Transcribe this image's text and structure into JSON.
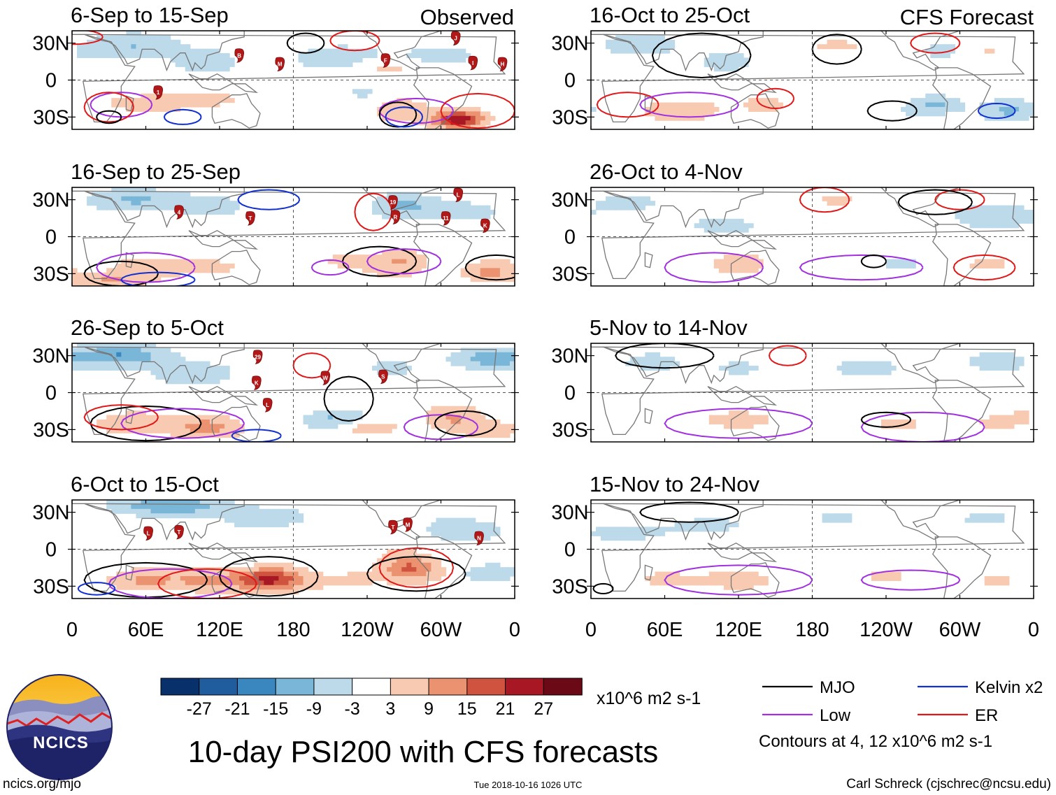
{
  "chart_data": {
    "type": "heatmap",
    "title": "10-day PSI200 with CFS forecasts",
    "units": "x10^6 m2 s-1",
    "columns": [
      "Observed",
      "CFS Forecast"
    ],
    "panels": [
      {
        "period": "6-Sep to 15-Sep",
        "column": "Observed",
        "storms": [
          {
            "id": "B",
            "lon": 136,
            "lat": 20
          },
          {
            "id": "M",
            "lon": 169,
            "lat": 13
          },
          {
            "id": "F",
            "lon": -105,
            "lat": 16
          },
          {
            "id": "J",
            "lon": -48,
            "lat": 34
          },
          {
            "id": "I",
            "lon": -34,
            "lat": 14
          },
          {
            "id": "H",
            "lon": -10,
            "lat": 13
          },
          {
            "id": "1",
            "lon": 70,
            "lat": -10
          }
        ]
      },
      {
        "period": "16-Oct to 25-Oct",
        "column": "CFS Forecast",
        "storms": []
      },
      {
        "period": "16-Sep to 25-Sep",
        "column": "Observed",
        "storms": [
          {
            "id": "4",
            "lon": 87,
            "lat": 20
          },
          {
            "id": "T",
            "lon": 145,
            "lat": 15
          },
          {
            "id": "19",
            "lon": -99,
            "lat": 28
          },
          {
            "id": "R",
            "lon": -97,
            "lat": 16
          },
          {
            "id": "L",
            "lon": -46,
            "lat": 34
          },
          {
            "id": "11",
            "lon": -56,
            "lat": 15
          },
          {
            "id": "K",
            "lon": -24,
            "lat": 9
          }
        ]
      },
      {
        "period": "26-Oct to 4-Nov",
        "column": "CFS Forecast",
        "storms": []
      },
      {
        "period": "26-Sep to 5-Oct",
        "column": "Observed",
        "storms": [
          {
            "id": "29",
            "lon": 151,
            "lat": 29
          },
          {
            "id": "K",
            "lon": 150,
            "lat": 8
          },
          {
            "id": "L",
            "lon": 159,
            "lat": -10
          },
          {
            "id": "W",
            "lon": -154,
            "lat": 12
          },
          {
            "id": "S",
            "lon": -107,
            "lat": 13
          }
        ]
      },
      {
        "period": "5-Nov to 14-Nov",
        "column": "CFS Forecast",
        "storms": []
      },
      {
        "period": "6-Oct to 15-Oct",
        "column": "Observed",
        "storms": [
          {
            "id": "L",
            "lon": 62,
            "lat": 13
          },
          {
            "id": "T",
            "lon": 87,
            "lat": 14
          },
          {
            "id": "T",
            "lon": -99,
            "lat": 18
          },
          {
            "id": "M",
            "lon": -87,
            "lat": 20
          },
          {
            "id": "N",
            "lon": -29,
            "lat": 9
          }
        ]
      },
      {
        "period": "15-Nov to 24-Nov",
        "column": "CFS Forecast",
        "storms": []
      }
    ],
    "y_ticks": [
      "30N",
      "0",
      "30S"
    ],
    "y_tick_values": [
      30,
      0,
      -30
    ],
    "x_ticks": [
      "0",
      "60E",
      "120E",
      "180",
      "120W",
      "60W",
      "0"
    ],
    "x_tick_values": [
      0,
      60,
      120,
      180,
      240,
      300,
      360
    ],
    "lon_range": [
      0,
      360
    ],
    "lat_range": [
      -40,
      40
    ],
    "colorbar": {
      "labels": [
        "-27",
        "-21",
        "-15",
        "-9",
        "-3",
        "3",
        "9",
        "15",
        "21",
        "27"
      ],
      "colors": [
        "#08306b",
        "#1f5d9e",
        "#3a87c0",
        "#7ab6d8",
        "#bcdaea",
        "#ffffff",
        "#f9cab2",
        "#eb9270",
        "#cf533e",
        "#a81824",
        "#6b0a16"
      ]
    },
    "legend": {
      "items": [
        {
          "label": "MJO",
          "color": "#000000"
        },
        {
          "label": "Kelvin x2",
          "color": "#1030d0"
        },
        {
          "label": "Low",
          "color": "#a030e0"
        },
        {
          "label": "ER",
          "color": "#e01818"
        }
      ],
      "note": "Contours at 4, 12 x10^6 m2 s-1"
    }
  },
  "footer": {
    "url": "ncics.org/mjo",
    "timestamp": "Tue 2018-10-16 1026 UTC",
    "author": "Carl Schreck (cjschrec@ncsu.edu)",
    "logo_text": "NCICS"
  }
}
